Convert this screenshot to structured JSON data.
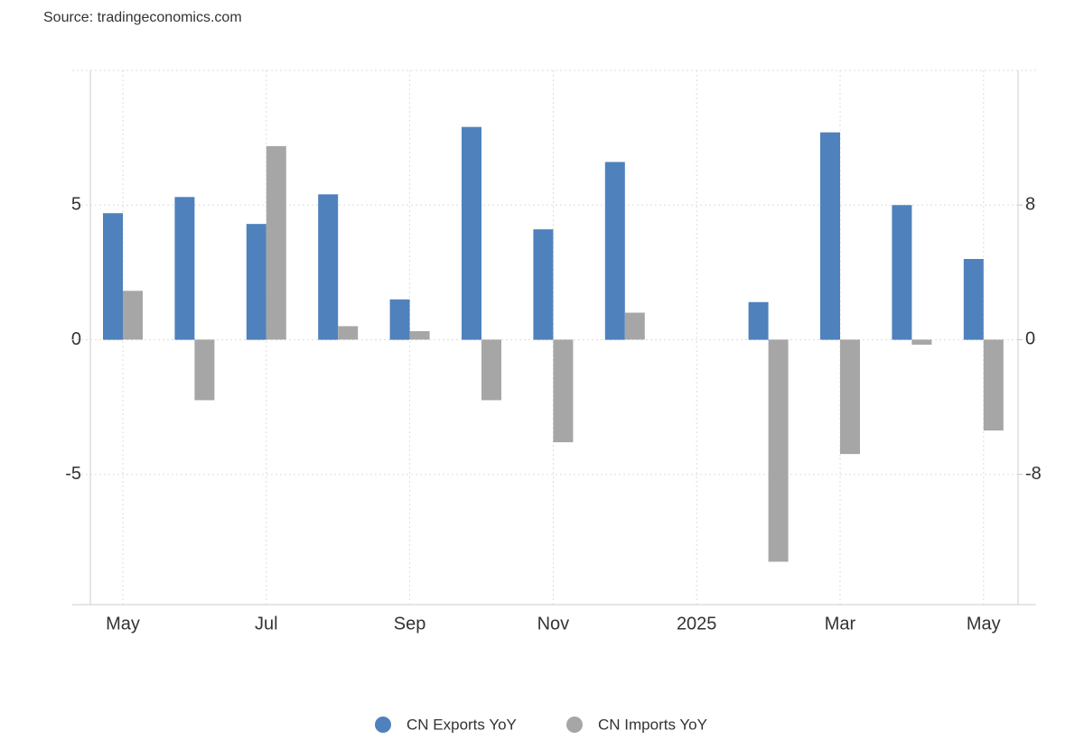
{
  "chart_data": {
    "type": "bar",
    "source": "Source: tradingeconomics.com",
    "categories": [
      "May",
      null,
      "Jul",
      null,
      "Sep",
      null,
      "Nov",
      null,
      "2025",
      null,
      "Mar",
      null,
      "May"
    ],
    "series": [
      {
        "name": "CN Exports YoY",
        "color": "#4f81bd",
        "values": [
          4.7,
          5.3,
          4.3,
          5.4,
          1.5,
          7.9,
          4.1,
          6.6,
          null,
          1.4,
          7.7,
          5.0,
          3.0
        ]
      },
      {
        "name": "CN Imports YoY",
        "color": "#a6a6a6",
        "axis": "y2",
        "values": [
          2.9,
          -3.6,
          11.5,
          0.8,
          0.5,
          -3.6,
          -6.1,
          1.6,
          null,
          -13.2,
          -6.8,
          -0.3,
          -5.4
        ]
      }
    ],
    "ylim": [
      -9.83,
      10
    ],
    "yticks": [
      -5,
      0,
      5
    ],
    "y2lim": [
      -15.75,
      16
    ],
    "y2ticks": [
      -8,
      0,
      8
    ],
    "grid": true,
    "legend": "bottom"
  }
}
